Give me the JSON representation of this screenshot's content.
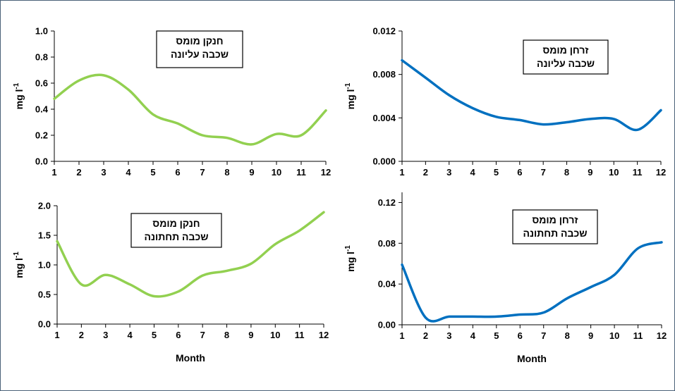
{
  "chart_data": [
    {
      "type": "line",
      "title_lines": [
        "חנקן מומס",
        "שכבה עליונה"
      ],
      "ylabel": "mg l",
      "ylabel_sup": "-1",
      "xlabel": "",
      "x": [
        1,
        2,
        3,
        4,
        5,
        6,
        7,
        8,
        9,
        10,
        11,
        12
      ],
      "xlim": [
        1,
        12
      ],
      "ylim": [
        0,
        1.0
      ],
      "yticks": [
        "0.0",
        "0.2",
        "0.4",
        "0.6",
        "0.8",
        "1.0"
      ],
      "color": "#92d050",
      "series": [
        {
          "values": [
            0.48,
            0.62,
            0.66,
            0.55,
            0.36,
            0.29,
            0.2,
            0.18,
            0.13,
            0.21,
            0.2,
            0.39
          ]
        }
      ]
    },
    {
      "type": "line",
      "title_lines": [
        "זרחן מומס",
        "שכבה עליונה"
      ],
      "ylabel": "mg l",
      "ylabel_sup": "-1",
      "xlabel": "",
      "x": [
        1,
        2,
        3,
        4,
        5,
        6,
        7,
        8,
        9,
        10,
        11,
        12
      ],
      "xlim": [
        1,
        12
      ],
      "ylim": [
        0,
        0.012
      ],
      "yticks": [
        "0.000",
        "0.004",
        "0.008",
        "0.012"
      ],
      "color": "#0070c0",
      "series": [
        {
          "values": [
            0.0093,
            0.0077,
            0.0061,
            0.0049,
            0.0041,
            0.0038,
            0.0034,
            0.0036,
            0.0039,
            0.0039,
            0.0029,
            0.0047
          ]
        }
      ]
    },
    {
      "type": "line",
      "title_lines": [
        "חנקן מומס",
        "שכבה תחתונה"
      ],
      "ylabel": "mg l",
      "ylabel_sup": "-1",
      "xlabel": "Month",
      "x": [
        1,
        2,
        3,
        4,
        5,
        6,
        7,
        8,
        9,
        10,
        11,
        12
      ],
      "xlim": [
        1,
        12
      ],
      "ylim": [
        0,
        2.0
      ],
      "yticks": [
        "0.0",
        "0.5",
        "1.0",
        "1.5",
        "2.0"
      ],
      "color": "#92d050",
      "series": [
        {
          "values": [
            1.4,
            0.67,
            0.83,
            0.67,
            0.47,
            0.55,
            0.82,
            0.9,
            1.02,
            1.35,
            1.58,
            1.89
          ]
        }
      ]
    },
    {
      "type": "line",
      "title_lines": [
        "זרחן מומס",
        "שכבה תחתונה"
      ],
      "ylabel": "mg l",
      "ylabel_sup": "-1",
      "xlabel": "Month",
      "x": [
        1,
        2,
        3,
        4,
        5,
        6,
        7,
        8,
        9,
        10,
        11,
        12
      ],
      "xlim": [
        1,
        12
      ],
      "ylim": [
        0,
        0.13
      ],
      "yticks": [
        "0.00",
        "0.04",
        "0.08",
        "0.12"
      ],
      "ytick_values": [
        0,
        0.04,
        0.08,
        0.12
      ],
      "color": "#0070c0",
      "series": [
        {
          "values": [
            0.059,
            0.007,
            0.008,
            0.008,
            0.008,
            0.01,
            0.012,
            0.026,
            0.037,
            0.049,
            0.075,
            0.081
          ]
        }
      ]
    }
  ]
}
